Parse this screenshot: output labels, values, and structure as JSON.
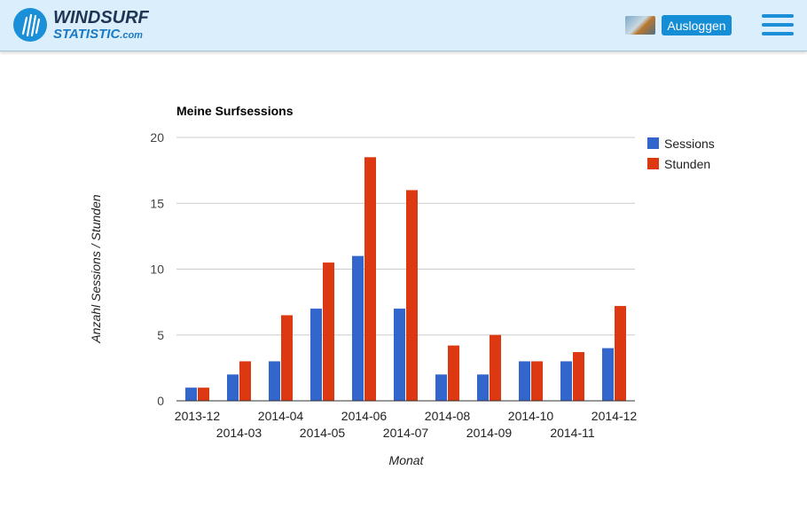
{
  "header": {
    "logo_line1": "WINDSURF",
    "logo_line2": "STATISTIC",
    "logo_domain": ".com",
    "logout_label": "Ausloggen",
    "colors": {
      "bar_bg": "#dbeefb",
      "accent": "#168ed6",
      "logo_dark": "#1e3554"
    }
  },
  "chart_data": {
    "type": "bar",
    "title": "Meine Surfsessions",
    "xlabel": "Monat",
    "ylabel": "Anzahl Sessions / Stunden",
    "categories": [
      "2013-12",
      "2014-03",
      "2014-04",
      "2014-05",
      "2014-06",
      "2014-07",
      "2014-08",
      "2014-09",
      "2014-10",
      "2014-11",
      "2014-12"
    ],
    "series": [
      {
        "name": "Sessions",
        "color": "#3366cc",
        "values": [
          1,
          2,
          3,
          7,
          11,
          7,
          2,
          2,
          3,
          3,
          4
        ]
      },
      {
        "name": "Stunden",
        "color": "#dc3912",
        "values": [
          1,
          3,
          6.5,
          10.5,
          18.5,
          16,
          4.2,
          5,
          3,
          3.7,
          7.2
        ]
      }
    ],
    "yticks": [
      0,
      5,
      10,
      15,
      20
    ],
    "ylim": [
      0,
      20
    ],
    "grid": true,
    "legend": "right"
  }
}
